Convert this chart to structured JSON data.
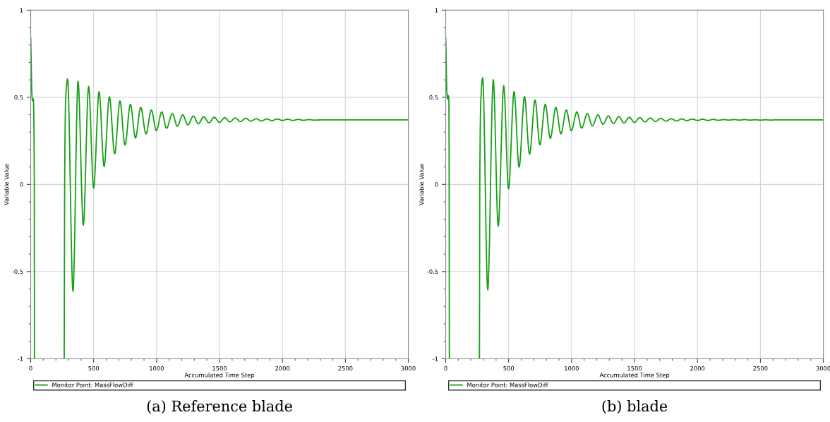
{
  "chart_data": [
    {
      "type": "line",
      "xlabel": "Accumulated Time Step",
      "ylabel": "Variable Value",
      "xlim": [
        0,
        3000
      ],
      "ylim": [
        -1,
        1
      ],
      "xticks": [
        0,
        500,
        1000,
        1500,
        2000,
        2500,
        3000
      ],
      "yticks": [
        -1,
        -0.5,
        0,
        0.5,
        1
      ],
      "grid": true,
      "legend": "bottom",
      "annotations": [
        "(a) Reference blade"
      ],
      "series": [
        {
          "name": "Monitor Point: MassFlowDiff",
          "color": "#16a016",
          "x": [
            0,
            10,
            15,
            21,
            28,
            30,
            150,
            266,
            270,
            277,
            293,
            336,
            376,
            418,
            460,
            500,
            543,
            583,
            625,
            667,
            709,
            749,
            792,
            832,
            874,
            916,
            958,
            998,
            1041,
            1079,
            1125,
            1165,
            1208,
            1248,
            1292,
            1332,
            1374,
            1416,
            1458,
            1500,
            1541,
            1583,
            1625,
            1666,
            1708,
            1750,
            1791,
            1833,
            1875,
            1916,
            1958,
            2000,
            2041,
            2083,
            2125,
            2166,
            2208,
            2250,
            2300,
            3000
          ],
          "values": [
            0.84,
            0.51,
            0.48,
            0.49,
            0.1,
            -1,
            null,
            -1,
            0.04,
            0.47,
            0.605,
            -0.614,
            0.592,
            -0.234,
            0.562,
            -0.021,
            0.532,
            0.102,
            0.503,
            0.176,
            0.479,
            0.226,
            0.46,
            0.266,
            0.442,
            0.29,
            0.427,
            0.308,
            0.416,
            0.322,
            0.406,
            0.334,
            0.399,
            0.342,
            0.392,
            0.348,
            0.388,
            0.353,
            0.385,
            0.356,
            0.383,
            0.359,
            0.381,
            0.361,
            0.379,
            0.363,
            0.377,
            0.364,
            0.376,
            0.366,
            0.375,
            0.367,
            0.374,
            0.367,
            0.373,
            0.368,
            0.372,
            0.369,
            0.37,
            0.37
          ]
        }
      ]
    },
    {
      "type": "line",
      "xlabel": "Accumulated Time Step",
      "ylabel": "Variable Value",
      "xlim": [
        0,
        3000
      ],
      "ylim": [
        -1,
        1
      ],
      "xticks": [
        0,
        500,
        1000,
        1500,
        2000,
        2500,
        3000
      ],
      "yticks": [
        -1,
        -0.5,
        0,
        0.5,
        1
      ],
      "grid": true,
      "legend": "bottom",
      "annotations": [
        "(b) blade"
      ],
      "series": [
        {
          "name": "Monitor Point: MassFlowDiff",
          "color": "#16a016",
          "x": [
            0,
            10,
            15,
            19,
            25,
            27,
            29,
            150,
            268,
            271,
            279,
            294,
            334,
            378,
            417,
            461,
            499,
            543,
            583,
            626,
            666,
            710,
            748,
            791,
            831,
            875,
            915,
            958,
            998,
            1042,
            1080,
            1125,
            1165,
            1209,
            1249,
            1292,
            1332,
            1376,
            1416,
            1458,
            1500,
            1541,
            1583,
            1625,
            1666,
            1708,
            1750,
            1791,
            1833,
            1875,
            1916,
            1958,
            2000,
            2041,
            2083,
            2125,
            2166,
            2208,
            2250,
            2291,
            2333,
            2375,
            2416,
            2458,
            2500,
            2541,
            2583,
            2610,
            3000
          ],
          "values": [
            0.84,
            0.52,
            0.49,
            0.51,
            0.49,
            0.16,
            -1,
            null,
            -1,
            0.04,
            0.48,
            0.612,
            -0.605,
            0.601,
            -0.24,
            0.566,
            -0.025,
            0.533,
            0.099,
            0.504,
            0.174,
            0.484,
            0.227,
            0.46,
            0.264,
            0.442,
            0.29,
            0.427,
            0.308,
            0.416,
            0.323,
            0.407,
            0.336,
            0.399,
            0.345,
            0.393,
            0.349,
            0.389,
            0.352,
            0.385,
            0.356,
            0.383,
            0.359,
            0.381,
            0.361,
            0.379,
            0.363,
            0.377,
            0.364,
            0.376,
            0.366,
            0.375,
            0.367,
            0.374,
            0.367,
            0.373,
            0.368,
            0.372,
            0.369,
            0.372,
            0.369,
            0.372,
            0.369,
            0.371,
            0.369,
            0.371,
            0.369,
            0.37,
            0.37
          ]
        }
      ]
    }
  ]
}
